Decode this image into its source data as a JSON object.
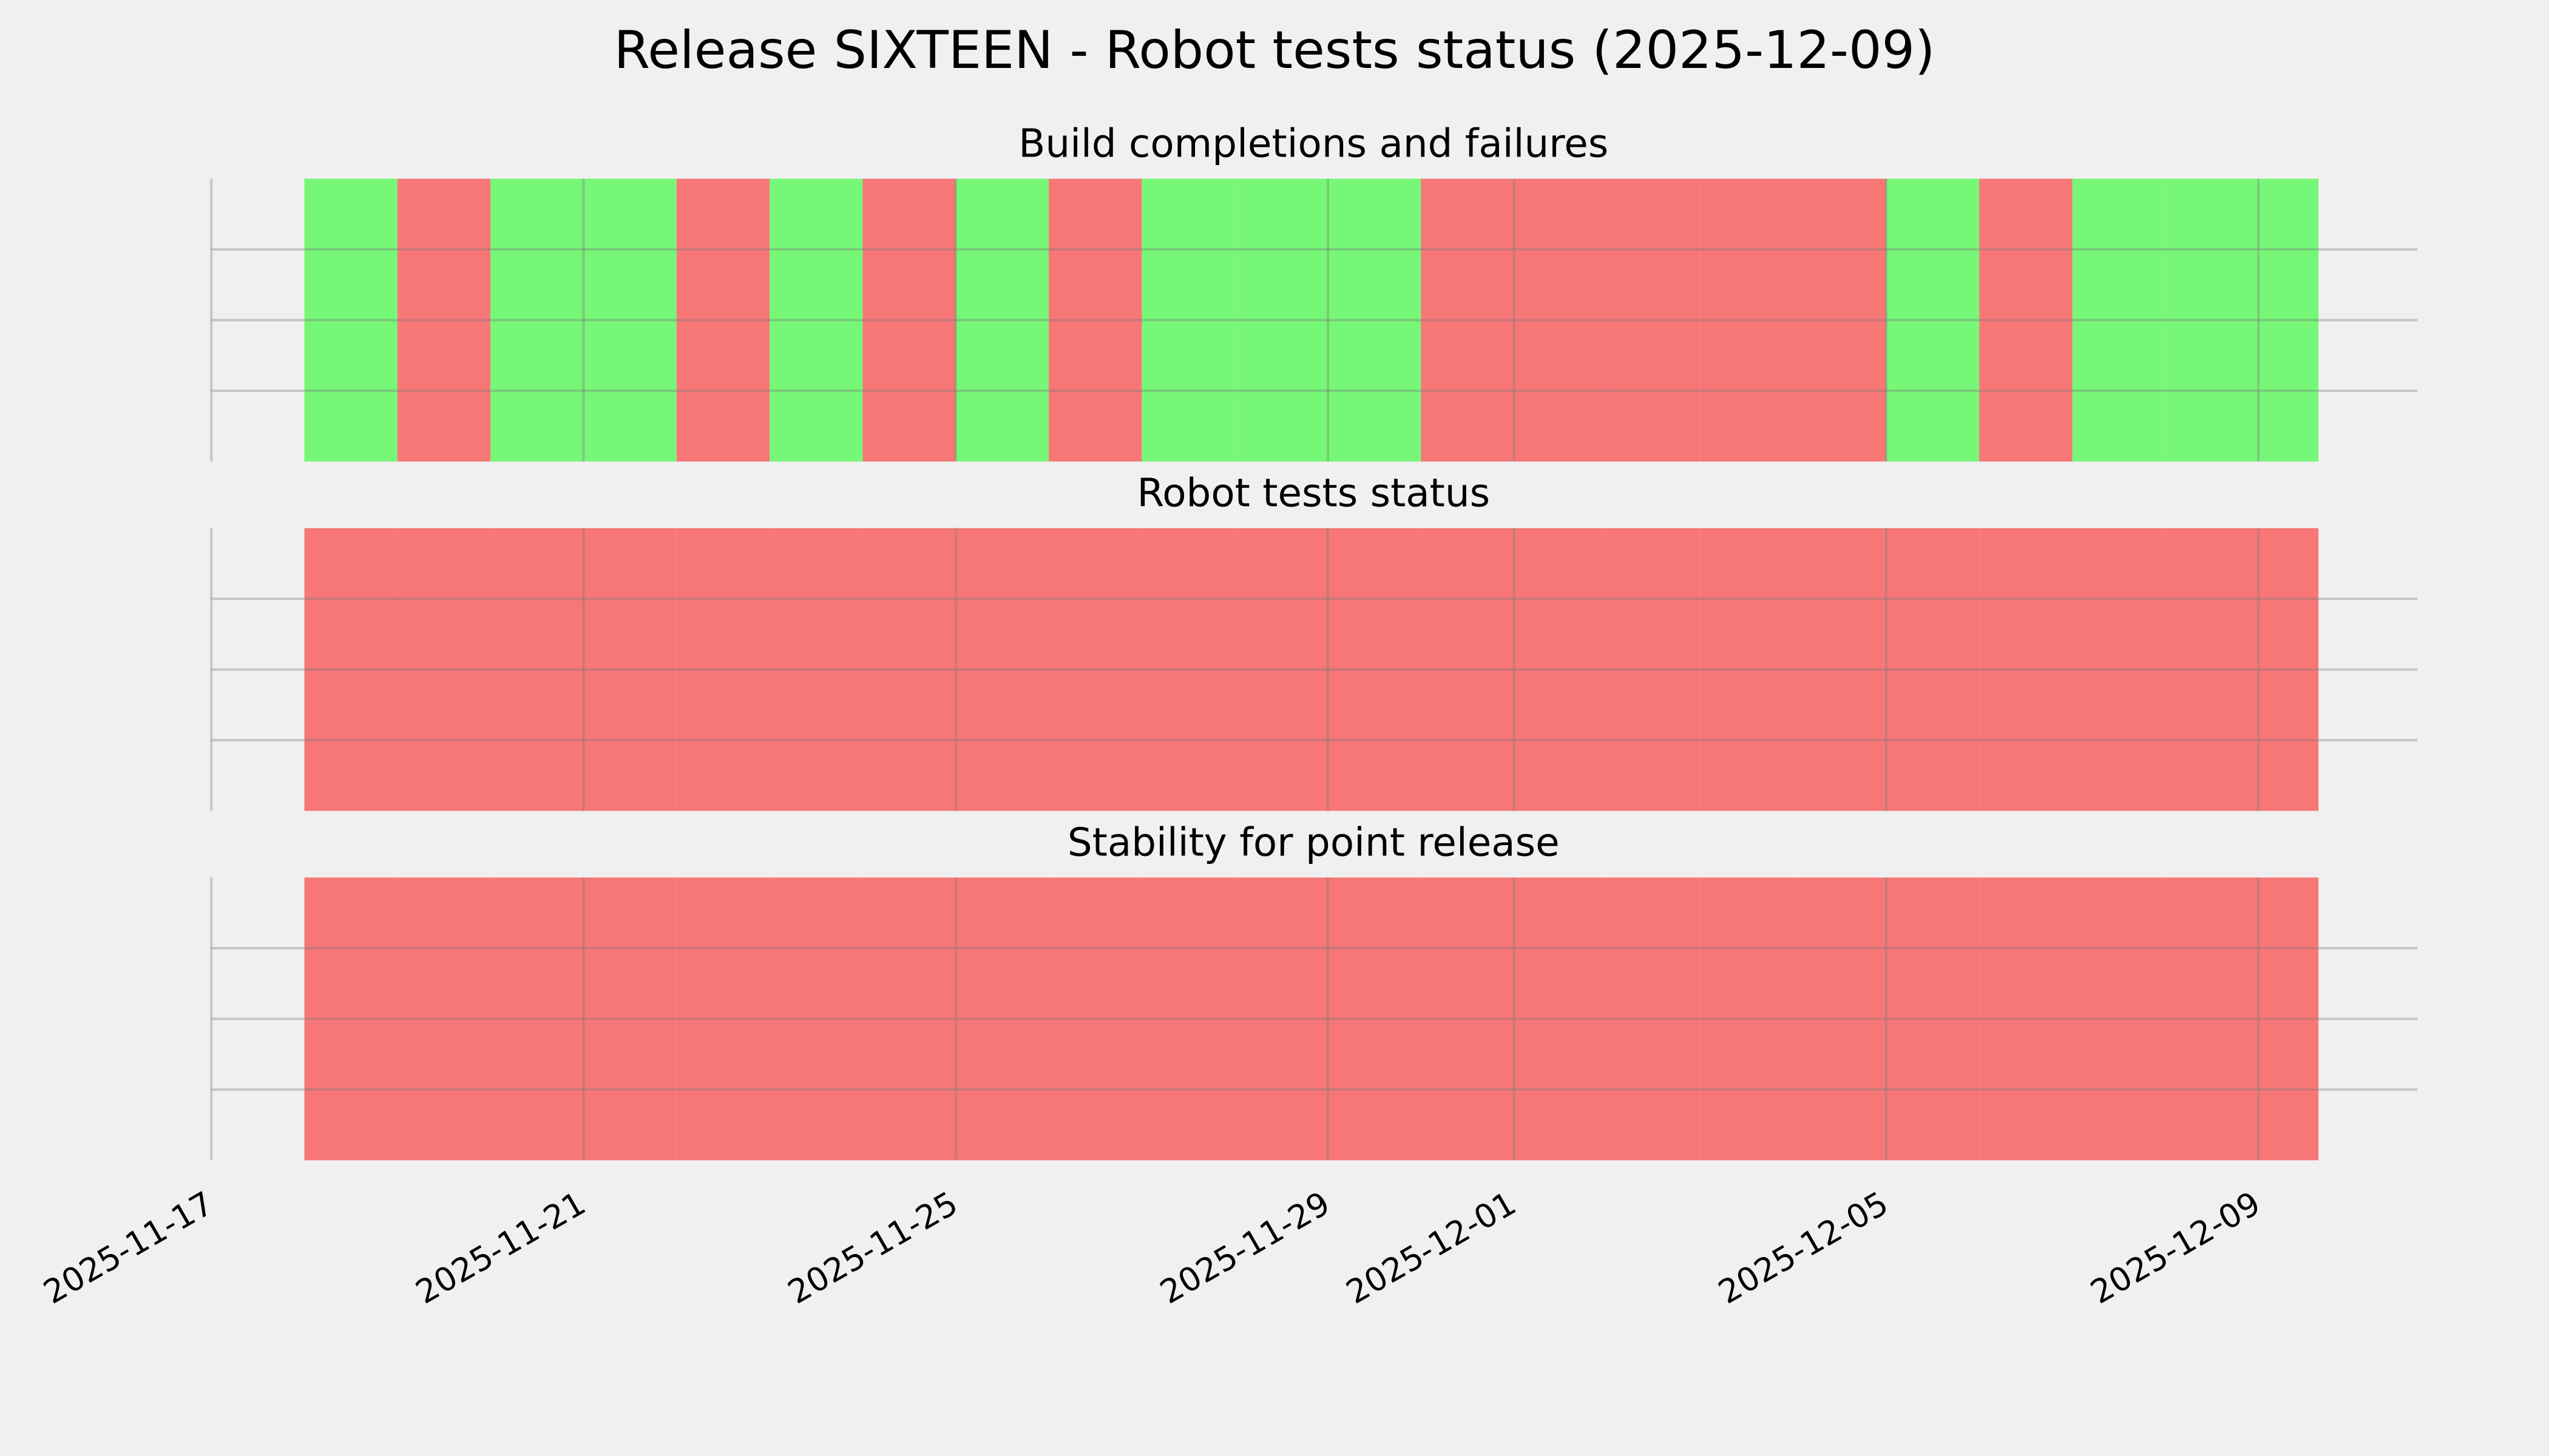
{
  "title": "Release SIXTEEN - Robot tests status (2025-12-09)",
  "chart_data": [
    {
      "type": "timeline",
      "title": "Build completions and failures",
      "x": [
        "2025-11-18",
        "2025-11-19",
        "2025-11-20",
        "2025-11-21",
        "2025-11-22",
        "2025-11-23",
        "2025-11-24",
        "2025-11-25",
        "2025-11-26",
        "2025-11-27",
        "2025-11-28",
        "2025-11-29",
        "2025-11-30",
        "2025-12-01",
        "2025-12-02",
        "2025-12-03",
        "2025-12-04",
        "2025-12-05",
        "2025-12-06",
        "2025-12-07",
        "2025-12-08",
        "2025-12-09"
      ],
      "end": "2025-12-09T15:30Z",
      "values": [
        1,
        0,
        1,
        1,
        0,
        1,
        0,
        1,
        0,
        1,
        1,
        1,
        0,
        0,
        0,
        0,
        0,
        1,
        0,
        1,
        1,
        1
      ],
      "colors": [
        "#f77777",
        "#77f777"
      ],
      "xlim": [
        "2025-11-17",
        "2025-12-10T17:00Z"
      ],
      "xticks": [
        "2025-11-17",
        "2025-11-21",
        "2025-11-25",
        "2025-11-29",
        "2025-12-01",
        "2025-12-05",
        "2025-12-09"
      ],
      "ylim": [
        0,
        1
      ],
      "yticks": [
        0.25,
        0.5,
        0.75
      ],
      "grid": true
    },
    {
      "type": "timeline",
      "title": "Robot tests status",
      "x": [
        "2025-11-18",
        "2025-11-19",
        "2025-11-20",
        "2025-11-21",
        "2025-11-22",
        "2025-11-23",
        "2025-11-24",
        "2025-11-25",
        "2025-11-26",
        "2025-11-27",
        "2025-11-28",
        "2025-11-29",
        "2025-11-30",
        "2025-12-01",
        "2025-12-02",
        "2025-12-03",
        "2025-12-04",
        "2025-12-05",
        "2025-12-06",
        "2025-12-07",
        "2025-12-08",
        "2025-12-09"
      ],
      "end": "2025-12-09T15:30Z",
      "values": [
        0,
        0,
        0,
        0,
        0,
        0,
        0,
        0,
        0,
        0,
        0,
        0,
        0,
        0,
        0,
        0,
        0,
        0,
        0,
        0,
        0,
        0
      ],
      "colors": [
        "#f77777",
        "#77f777"
      ],
      "xlim": [
        "2025-11-17",
        "2025-12-10T17:00Z"
      ],
      "xticks": [
        "2025-11-17",
        "2025-11-21",
        "2025-11-25",
        "2025-11-29",
        "2025-12-01",
        "2025-12-05",
        "2025-12-09"
      ],
      "ylim": [
        0,
        1
      ],
      "yticks": [
        0.25,
        0.5,
        0.75
      ],
      "grid": true
    },
    {
      "type": "timeline",
      "title": "Stability for point release",
      "x": [
        "2025-11-18",
        "2025-11-19",
        "2025-11-20",
        "2025-11-21",
        "2025-11-22",
        "2025-11-23",
        "2025-11-24",
        "2025-11-25",
        "2025-11-26",
        "2025-11-27",
        "2025-11-28",
        "2025-11-29",
        "2025-11-30",
        "2025-12-01",
        "2025-12-02",
        "2025-12-03",
        "2025-12-04",
        "2025-12-05",
        "2025-12-06",
        "2025-12-07",
        "2025-12-08",
        "2025-12-09"
      ],
      "end": "2025-12-09T15:30Z",
      "values": [
        0,
        0,
        0,
        0,
        0,
        0,
        0,
        0,
        0,
        0,
        0,
        0,
        0,
        0,
        0,
        0,
        0,
        0,
        0,
        0,
        0,
        0
      ],
      "colors": [
        "#f77777",
        "#77f777"
      ],
      "xlim": [
        "2025-11-17",
        "2025-12-10T17:00Z"
      ],
      "xticks": [
        "2025-11-17",
        "2025-11-21",
        "2025-11-25",
        "2025-11-29",
        "2025-12-01",
        "2025-12-05",
        "2025-12-09"
      ],
      "ylim": [
        0,
        1
      ],
      "yticks": [
        0.25,
        0.5,
        0.75
      ],
      "grid": true,
      "show_xtick_labels": true
    }
  ]
}
